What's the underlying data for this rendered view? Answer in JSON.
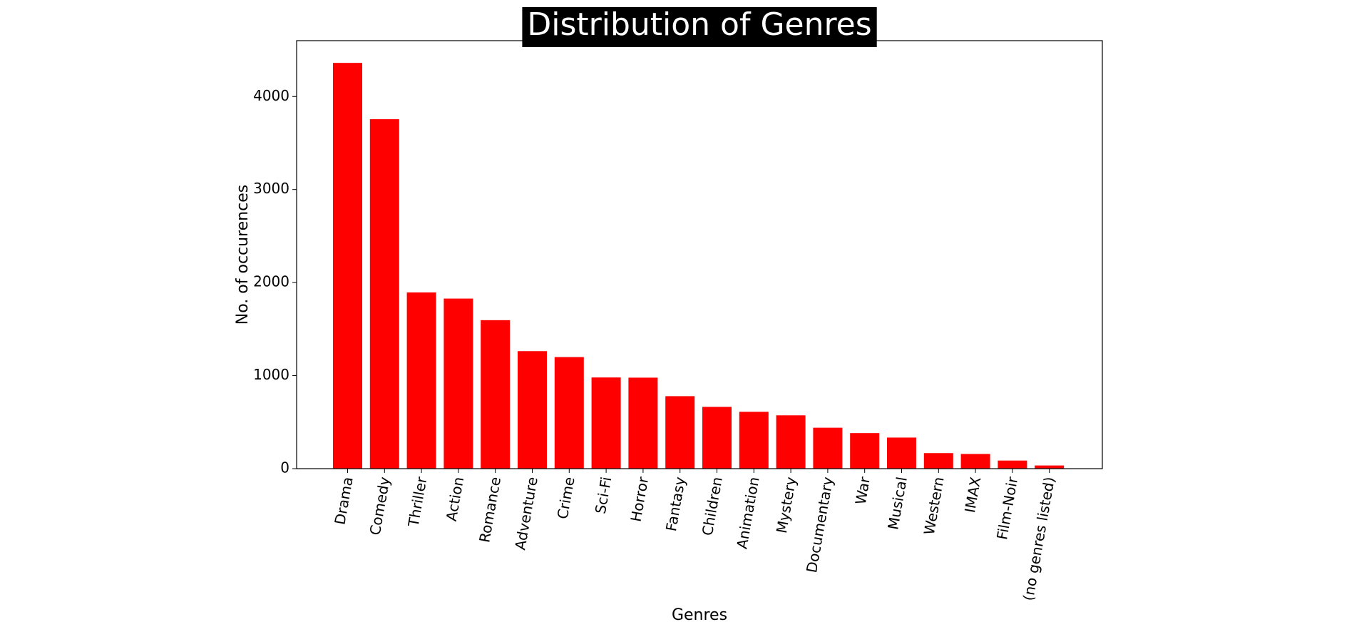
{
  "colors": {
    "bar": "#ff0000",
    "title_background": "#000000",
    "title_text": "#ffffff",
    "axes": "#000000"
  },
  "chart_data": {
    "type": "bar",
    "title": "Distribution of Genres",
    "xlabel": "Genres",
    "ylabel": "No. of occurences",
    "ylim": [
      0,
      4600
    ],
    "yticks": [
      "0",
      "1000",
      "2000",
      "3000",
      "4000"
    ],
    "grid": false,
    "categories": [
      "Drama",
      "Comedy",
      "Thriller",
      "Action",
      "Romance",
      "Adventure",
      "Crime",
      "Sci-Fi",
      "Horror",
      "Fantasy",
      "Children",
      "Animation",
      "Mystery",
      "Documentary",
      "War",
      "Musical",
      "Western",
      "IMAX",
      "Film-Noir",
      "(no genres listed)"
    ],
    "values": [
      4361,
      3756,
      1894,
      1828,
      1596,
      1263,
      1199,
      980,
      978,
      779,
      664,
      611,
      573,
      440,
      382,
      334,
      167,
      158,
      87,
      34
    ]
  }
}
